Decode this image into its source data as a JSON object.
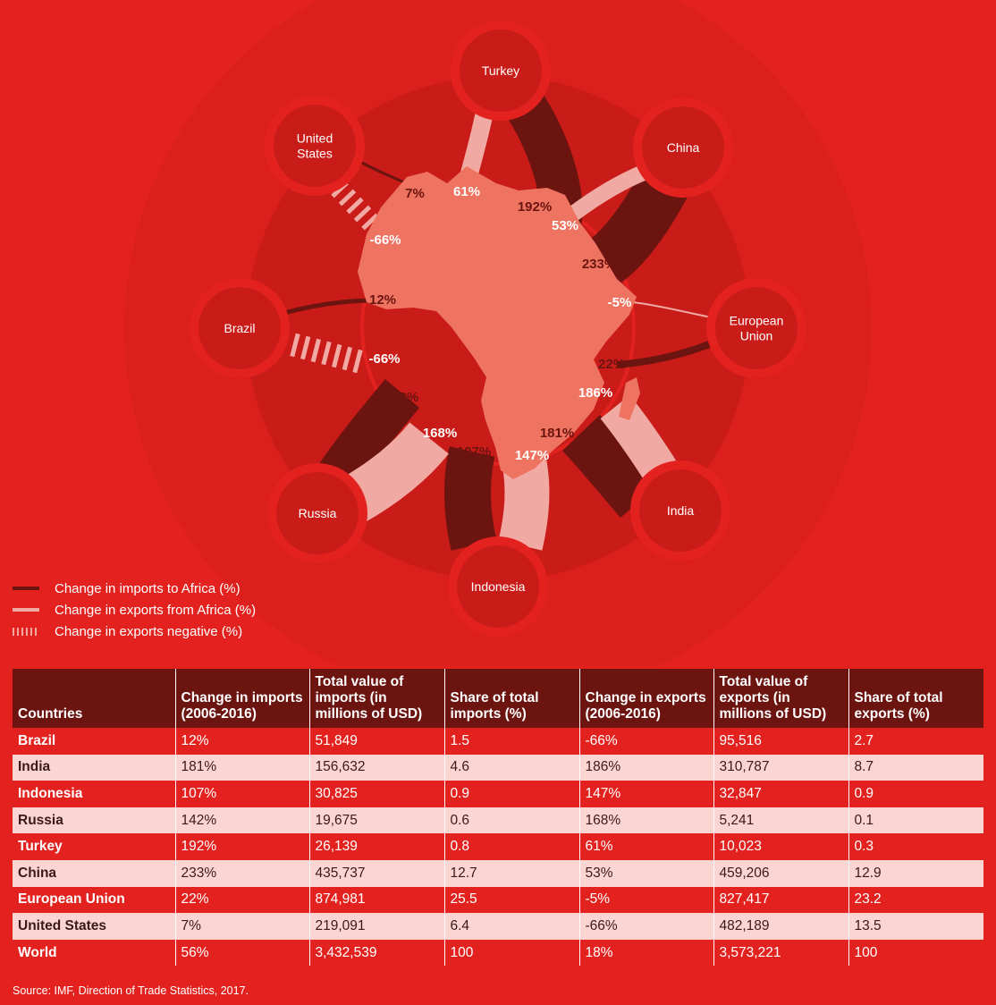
{
  "chart_data": {
    "type": "table",
    "title": "",
    "legend": [
      {
        "key": "imports",
        "label": "Change in imports to Africa (%)",
        "color": "#6b1410"
      },
      {
        "key": "exports",
        "label": "Change in exports from Africa (%)",
        "color": "#f1aaa3"
      },
      {
        "key": "negative",
        "label": "Change in exports negative (%)",
        "color": "#f1aaa3"
      }
    ],
    "nodes": [
      {
        "country": "Turkey",
        "label_lines": [
          "Turkey"
        ],
        "import_label": "192%",
        "export_label": "61%"
      },
      {
        "country": "China",
        "label_lines": [
          "China"
        ],
        "import_label": "233%",
        "export_label": "53%"
      },
      {
        "country": "European Union",
        "label_lines": [
          "European",
          "Union"
        ],
        "import_label": "22%",
        "export_label": "-5%"
      },
      {
        "country": "India",
        "label_lines": [
          "India"
        ],
        "import_label": "181%",
        "export_label": "186%"
      },
      {
        "country": "Indonesia",
        "label_lines": [
          "Indonesia"
        ],
        "import_label": "107%",
        "export_label": "147%"
      },
      {
        "country": "Russia",
        "label_lines": [
          "Russia"
        ],
        "import_label": "142%",
        "export_label": "168%"
      },
      {
        "country": "Brazil",
        "label_lines": [
          "Brazil"
        ],
        "import_label": "12%",
        "export_label": "-66%"
      },
      {
        "country": "United States",
        "label_lines": [
          "United",
          "States"
        ],
        "import_label": "7%",
        "export_label": "-66%"
      }
    ],
    "table": {
      "columns": [
        "Countries",
        "Change in imports (2006-2016)",
        "Total value of imports (in millions of USD)",
        "Share of total imports (%)",
        "Change in exports (2006-2016)",
        "Total value of exports (in millions of USD)",
        "Share of total exports (%)"
      ],
      "rows": [
        {
          "country": "Brazil",
          "import_change": "12%",
          "import_value": "51,849",
          "import_share": "1.5",
          "export_change": "-66%",
          "export_value": "95,516",
          "export_share": "2.7"
        },
        {
          "country": "India",
          "import_change": "181%",
          "import_value": "156,632",
          "import_share": "4.6",
          "export_change": "186%",
          "export_value": "310,787",
          "export_share": "8.7"
        },
        {
          "country": "Indonesia",
          "import_change": "107%",
          "import_value": "30,825",
          "import_share": "0.9",
          "export_change": "147%",
          "export_value": "32,847",
          "export_share": "0.9"
        },
        {
          "country": "Russia",
          "import_change": "142%",
          "import_value": "19,675",
          "import_share": "0.6",
          "export_change": "168%",
          "export_value": "5,241",
          "export_share": "0.1"
        },
        {
          "country": "Turkey",
          "import_change": "192%",
          "import_value": "26,139",
          "import_share": "0.8",
          "export_change": "61%",
          "export_value": "10,023",
          "export_share": "0.3"
        },
        {
          "country": "China",
          "import_change": "233%",
          "import_value": "435,737",
          "import_share": "12.7",
          "export_change": "53%",
          "export_value": "459,206",
          "export_share": "12.9"
        },
        {
          "country": "European Union",
          "import_change": "22%",
          "import_value": "874,981",
          "import_share": "25.5",
          "export_change": "-5%",
          "export_value": "827,417",
          "export_share": "23.2"
        },
        {
          "country": "United States",
          "import_change": "7%",
          "import_value": "219,091",
          "import_share": "6.4",
          "export_change": "-66%",
          "export_value": "482,189",
          "export_share": "13.5"
        },
        {
          "country": "World",
          "import_change": "56%",
          "import_value": "3,432,539",
          "import_share": "100",
          "export_change": "18%",
          "export_value": "3,573,221",
          "export_share": "100"
        }
      ]
    },
    "source": "Source: IMF, Direction of Trade Statistics, 2017."
  }
}
